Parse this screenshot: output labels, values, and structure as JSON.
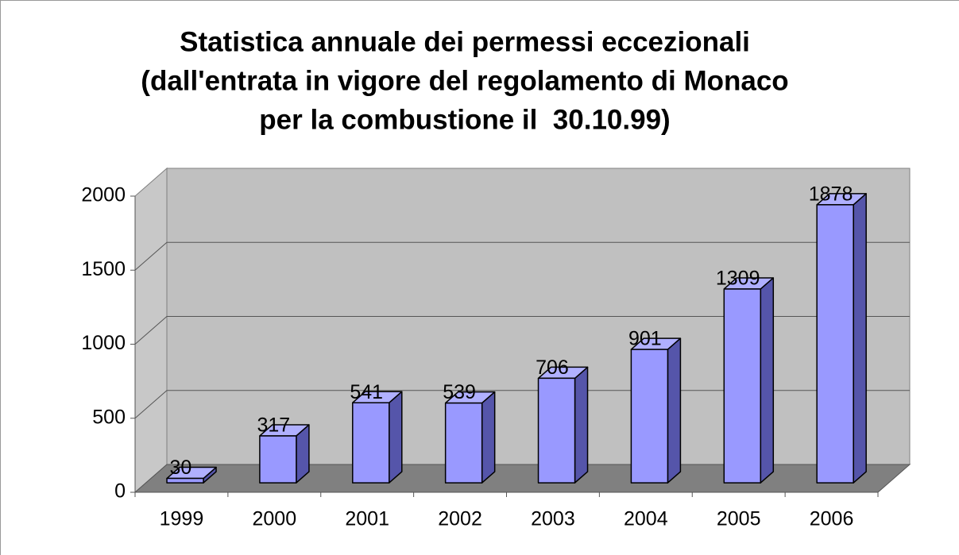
{
  "chart_data": {
    "type": "bar3d",
    "title": [
      "Statistica annuale dei permessi eccezionali",
      "(dall'entrata in vigore del regolamento di Monaco",
      "per la combustione il  30.10.99)"
    ],
    "categories": [
      "1999",
      "2000",
      "2001",
      "2002",
      "2003",
      "2004",
      "2005",
      "2006"
    ],
    "values": [
      30,
      317,
      541,
      539,
      706,
      901,
      1309,
      1878
    ],
    "color": "#9999ff",
    "ylim": [
      0,
      2000
    ],
    "yticks": [
      0,
      500,
      1000,
      1500,
      2000
    ],
    "grid": true
  }
}
